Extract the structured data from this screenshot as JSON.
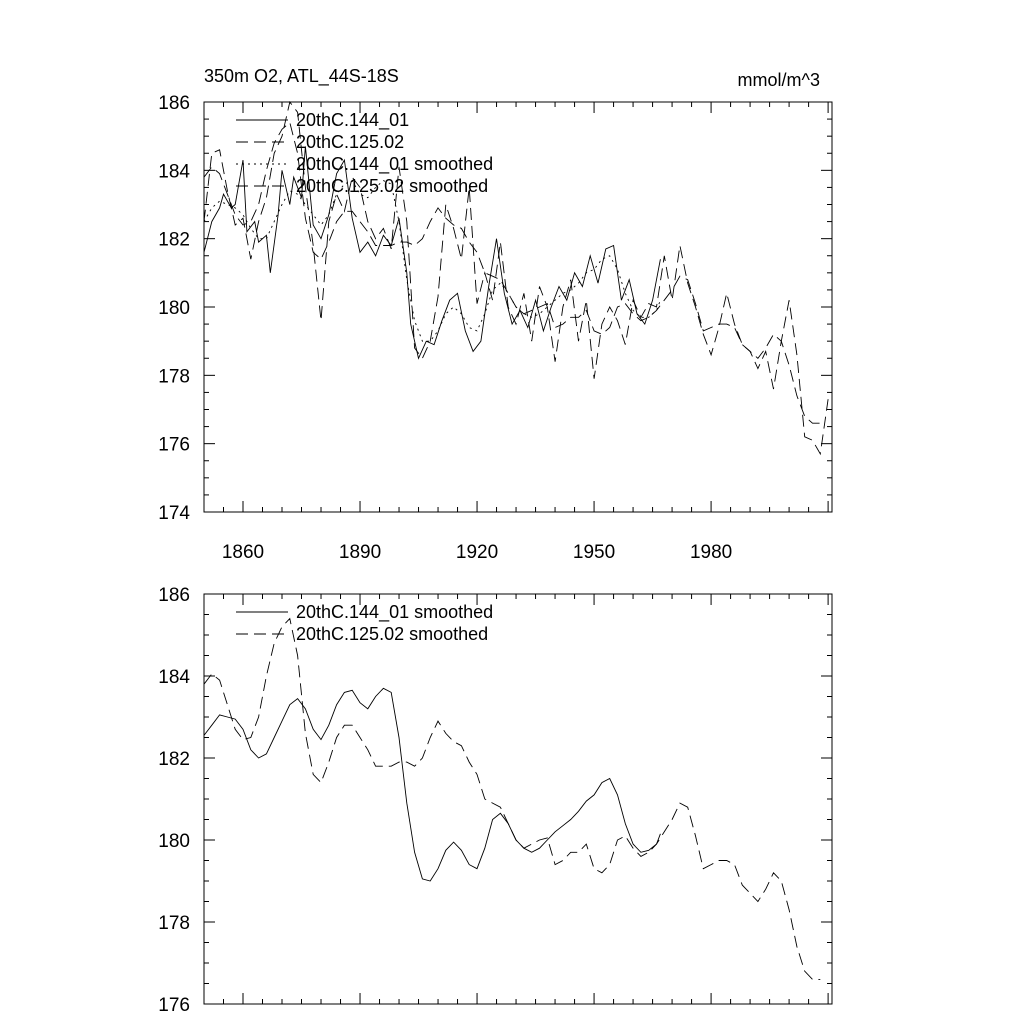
{
  "chart_data": [
    {
      "type": "line",
      "title": "350m O2, ATL_44S-18S",
      "units": "mmol/m^3",
      "xlabel": "",
      "ylabel": "",
      "xlim": [
        1850,
        2011
      ],
      "ylim": [
        174,
        186
      ],
      "x_ticks": [
        1860,
        1890,
        1920,
        1950,
        1980
      ],
      "y_ticks": [
        174,
        176,
        178,
        180,
        182,
        184,
        186
      ],
      "grid": false,
      "legend_position": "top-left",
      "series": [
        {
          "name": "20thC.144_01",
          "style": "solid",
          "x": [
            1850,
            1852,
            1854,
            1855,
            1857,
            1858,
            1860,
            1861,
            1863,
            1864,
            1866,
            1867,
            1869,
            1870,
            1872,
            1873,
            1875,
            1876,
            1878,
            1880,
            1882,
            1884,
            1886,
            1888,
            1890,
            1892,
            1894,
            1896,
            1898,
            1900,
            1902,
            1903,
            1905,
            1907,
            1909,
            1911,
            1913,
            1915,
            1917,
            1919,
            1921,
            1923,
            1925,
            1927,
            1929,
            1931,
            1933,
            1935,
            1937,
            1939,
            1941,
            1943,
            1945,
            1947,
            1949,
            1951,
            1953,
            1955,
            1957,
            1959,
            1961,
            1963,
            1965,
            1967
          ],
          "y": [
            181.6,
            182.5,
            182.9,
            183.3,
            182.9,
            183.0,
            184.3,
            182.2,
            182.5,
            181.9,
            182.1,
            181.0,
            182.7,
            184.0,
            183.0,
            183.8,
            183.2,
            184.7,
            182.4,
            182.0,
            182.7,
            183.9,
            184.3,
            182.6,
            181.6,
            181.9,
            181.5,
            182.1,
            181.8,
            182.6,
            181.0,
            179.5,
            178.5,
            179.0,
            178.9,
            179.6,
            180.2,
            180.4,
            179.3,
            178.7,
            179.0,
            180.6,
            182.0,
            180.4,
            179.5,
            179.9,
            179.4,
            180.2,
            179.3,
            180.0,
            180.6,
            180.2,
            181.0,
            180.6,
            181.5,
            180.7,
            181.7,
            181.8,
            180.2,
            180.8,
            179.8,
            179.5,
            180.2,
            181.4
          ]
        },
        {
          "name": "20thC.125.02",
          "style": "dashed",
          "x": [
            1850,
            1852,
            1854,
            1856,
            1858,
            1860,
            1862,
            1864,
            1866,
            1868,
            1870,
            1872,
            1874,
            1876,
            1878,
            1880,
            1882,
            1884,
            1886,
            1888,
            1890,
            1892,
            1894,
            1896,
            1898,
            1900,
            1902,
            1904,
            1906,
            1908,
            1910,
            1912,
            1914,
            1916,
            1918,
            1920,
            1922,
            1924,
            1926,
            1928,
            1930,
            1932,
            1934,
            1936,
            1938,
            1940,
            1942,
            1944,
            1946,
            1948,
            1950,
            1952,
            1954,
            1956,
            1958,
            1960,
            1962,
            1964,
            1966,
            1968,
            1970,
            1972,
            1974,
            1976,
            1978,
            1980,
            1982,
            1984,
            1986,
            1988,
            1990,
            1992,
            1994,
            1996,
            1998,
            2000,
            2002,
            2004,
            2006,
            2008,
            2010
          ],
          "y": [
            182.5,
            184.5,
            184.6,
            183.4,
            182.4,
            182.6,
            181.4,
            182.5,
            183.2,
            184.5,
            185.0,
            186.0,
            185.7,
            183.5,
            181.8,
            179.6,
            182.5,
            183.3,
            182.8,
            183.8,
            183.5,
            182.5,
            182.0,
            182.3,
            181.7,
            184.1,
            182.5,
            178.8,
            178.5,
            179.0,
            180.3,
            183.0,
            182.3,
            181.4,
            183.5,
            180.1,
            181.0,
            180.2,
            181.9,
            180.0,
            179.5,
            180.4,
            179.0,
            180.6,
            180.0,
            178.4,
            180.0,
            180.8,
            179.0,
            180.2,
            177.9,
            179.5,
            180.0,
            179.6,
            178.9,
            180.2,
            179.7,
            180.1,
            180.0,
            181.5,
            180.2,
            181.8,
            180.7,
            180.0,
            179.2,
            178.6,
            179.4,
            180.4,
            179.5,
            178.9,
            178.7,
            178.2,
            178.7,
            177.6,
            179.0,
            180.2,
            178.6,
            176.2,
            176.1,
            175.7,
            177.3
          ]
        },
        {
          "name": "20thC.144_01 smoothed",
          "style": "dotted",
          "x": [
            1850,
            1852,
            1854,
            1856,
            1858,
            1860,
            1862,
            1864,
            1866,
            1868,
            1870,
            1872,
            1874,
            1876,
            1878,
            1880,
            1882,
            1884,
            1886,
            1888,
            1890,
            1892,
            1894,
            1896,
            1898,
            1900,
            1902,
            1904,
            1906,
            1908,
            1910,
            1912,
            1914,
            1916,
            1918,
            1920,
            1922,
            1924,
            1926,
            1928,
            1930,
            1932,
            1934,
            1936,
            1938,
            1940,
            1942,
            1944,
            1946,
            1948,
            1950,
            1952,
            1954,
            1956,
            1958,
            1960,
            1962,
            1964,
            1966,
            1967
          ],
          "y": [
            182.5,
            182.9,
            183.1,
            183.0,
            182.9,
            182.7,
            182.3,
            182.0,
            182.0,
            182.5,
            183.0,
            183.4,
            183.3,
            183.0,
            182.7,
            182.4,
            182.7,
            183.3,
            183.6,
            183.7,
            183.3,
            183.2,
            183.5,
            183.7,
            183.6,
            182.5,
            180.8,
            179.6,
            179.0,
            179.0,
            179.3,
            179.8,
            180.0,
            179.8,
            179.4,
            179.3,
            179.8,
            180.5,
            180.7,
            180.4,
            180.0,
            179.8,
            179.7,
            179.8,
            180.0,
            180.2,
            180.4,
            180.5,
            180.7,
            181.0,
            181.1,
            181.4,
            181.5,
            181.1,
            180.4,
            179.9,
            179.7,
            179.7,
            179.9,
            180.2
          ]
        },
        {
          "name": "20thC.125.02 smoothed",
          "style": "dashed",
          "x": [
            1850,
            1852,
            1854,
            1856,
            1858,
            1860,
            1862,
            1864,
            1866,
            1868,
            1870,
            1872,
            1874,
            1876,
            1878,
            1880,
            1882,
            1884,
            1886,
            1888,
            1890,
            1892,
            1894,
            1896,
            1898,
            1900,
            1902,
            1904,
            1906,
            1908,
            1910,
            1912,
            1914,
            1916,
            1918,
            1920,
            1922,
            1924,
            1926,
            1928,
            1930,
            1932,
            1934,
            1936,
            1938,
            1940,
            1942,
            1944,
            1946,
            1948,
            1950,
            1952,
            1954,
            1956,
            1958,
            1960,
            1962,
            1964,
            1966,
            1968,
            1970,
            1972,
            1974,
            1976,
            1978,
            1980,
            1982,
            1984,
            1986,
            1988,
            1990,
            1992,
            1994,
            1996,
            1998,
            2000,
            2002,
            2004,
            2006,
            2008
          ],
          "y": [
            183.8,
            184.1,
            183.9,
            183.3,
            182.7,
            182.4,
            182.5,
            183.0,
            184.0,
            184.8,
            185.2,
            185.4,
            184.5,
            182.6,
            181.6,
            181.4,
            181.9,
            182.5,
            182.8,
            182.8,
            182.5,
            182.2,
            181.8,
            181.8,
            181.8,
            181.9,
            181.9,
            181.8,
            182.0,
            182.5,
            182.9,
            182.6,
            182.4,
            182.3,
            181.9,
            181.6,
            181.0,
            180.9,
            180.8,
            180.4,
            180.0,
            179.8,
            179.9,
            180.0,
            180.1,
            179.4,
            179.5,
            179.7,
            179.7,
            179.9,
            179.3,
            179.2,
            179.4,
            180.0,
            180.1,
            179.8,
            179.6,
            179.7,
            179.9,
            180.2,
            180.5,
            180.9,
            180.8,
            180.1,
            179.3,
            179.4,
            179.5,
            179.5,
            179.4,
            178.9,
            178.7,
            178.5,
            178.8,
            179.2,
            179.0,
            178.3,
            177.4,
            176.8,
            176.6,
            176.6
          ]
        }
      ]
    },
    {
      "type": "line",
      "title": "",
      "xlabel": "",
      "ylabel": "",
      "xlim": [
        1850,
        2011
      ],
      "ylim": [
        176,
        186
      ],
      "y_ticks": [
        176,
        178,
        180,
        182,
        184,
        186
      ],
      "grid": false,
      "legend_position": "top-left",
      "series": [
        {
          "name": "20thC.144_01 smoothed",
          "style": "solid",
          "x": [
            1850,
            1852,
            1854,
            1856,
            1858,
            1860,
            1862,
            1864,
            1866,
            1868,
            1870,
            1872,
            1874,
            1876,
            1878,
            1880,
            1882,
            1884,
            1886,
            1888,
            1890,
            1892,
            1894,
            1896,
            1898,
            1900,
            1902,
            1904,
            1906,
            1908,
            1910,
            1912,
            1914,
            1916,
            1918,
            1920,
            1922,
            1924,
            1926,
            1928,
            1930,
            1932,
            1934,
            1936,
            1938,
            1940,
            1942,
            1944,
            1946,
            1948,
            1950,
            1952,
            1954,
            1956,
            1958,
            1960,
            1962,
            1964,
            1966,
            1967
          ],
          "y": [
            182.55,
            182.8,
            183.05,
            183.0,
            182.95,
            182.7,
            182.2,
            182.0,
            182.1,
            182.5,
            182.9,
            183.3,
            183.45,
            183.2,
            182.7,
            182.45,
            182.8,
            183.3,
            183.6,
            183.65,
            183.35,
            183.2,
            183.5,
            183.7,
            183.6,
            182.5,
            180.9,
            179.7,
            179.05,
            179.0,
            179.3,
            179.75,
            179.95,
            179.75,
            179.4,
            179.3,
            179.8,
            180.5,
            180.65,
            180.4,
            180.0,
            179.8,
            179.7,
            179.8,
            180.0,
            180.2,
            180.35,
            180.5,
            180.7,
            180.95,
            181.1,
            181.4,
            181.5,
            181.1,
            180.4,
            179.9,
            179.7,
            179.75,
            179.9,
            180.15
          ]
        },
        {
          "name": "20thC.125.02 smoothed",
          "style": "dashed",
          "x": [
            1850,
            1852,
            1854,
            1856,
            1858,
            1860,
            1862,
            1864,
            1866,
            1868,
            1870,
            1872,
            1874,
            1876,
            1878,
            1880,
            1882,
            1884,
            1886,
            1888,
            1890,
            1892,
            1894,
            1896,
            1898,
            1900,
            1902,
            1904,
            1906,
            1908,
            1910,
            1912,
            1914,
            1916,
            1918,
            1920,
            1922,
            1924,
            1926,
            1928,
            1930,
            1932,
            1934,
            1936,
            1938,
            1940,
            1942,
            1944,
            1946,
            1948,
            1950,
            1952,
            1954,
            1956,
            1958,
            1960,
            1962,
            1964,
            1966,
            1968,
            1970,
            1972,
            1974,
            1976,
            1978,
            1980,
            1982,
            1984,
            1986,
            1988,
            1990,
            1992,
            1994,
            1996,
            1998,
            2000,
            2002,
            2004,
            2006,
            2008
          ],
          "y": [
            183.8,
            184.05,
            183.9,
            183.3,
            182.7,
            182.45,
            182.5,
            183.0,
            184.0,
            184.8,
            185.2,
            185.4,
            184.5,
            182.6,
            181.6,
            181.4,
            181.9,
            182.5,
            182.8,
            182.8,
            182.5,
            182.2,
            181.8,
            181.8,
            181.8,
            181.9,
            181.9,
            181.8,
            182.0,
            182.5,
            182.9,
            182.6,
            182.4,
            182.3,
            181.9,
            181.6,
            181.0,
            180.9,
            180.8,
            180.4,
            180.0,
            179.8,
            179.9,
            180.0,
            180.05,
            179.4,
            179.5,
            179.7,
            179.7,
            179.9,
            179.3,
            179.2,
            179.4,
            180.0,
            180.1,
            179.8,
            179.6,
            179.7,
            179.9,
            180.2,
            180.5,
            180.9,
            180.8,
            180.1,
            179.3,
            179.4,
            179.5,
            179.5,
            179.4,
            178.9,
            178.7,
            178.5,
            178.8,
            179.2,
            179.0,
            178.3,
            177.4,
            176.8,
            176.6,
            176.6
          ]
        }
      ]
    }
  ]
}
